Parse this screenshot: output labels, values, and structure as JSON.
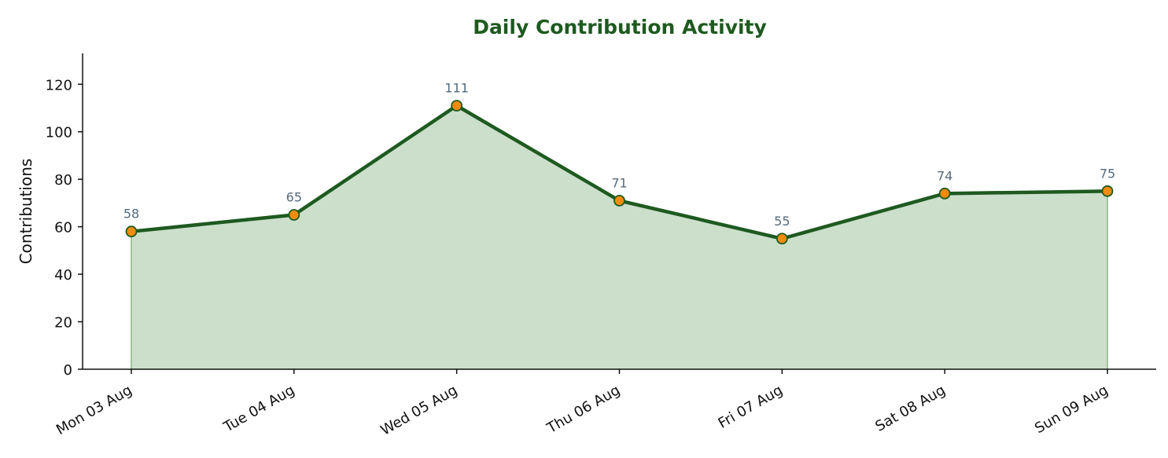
{
  "chart_data": {
    "type": "area",
    "title": "Daily Contribution Activity",
    "xlabel": "",
    "ylabel": "Contributions",
    "categories": [
      "Mon 03 Aug",
      "Tue 04 Aug",
      "Wed 05 Aug",
      "Thu 06 Aug",
      "Fri 07 Aug",
      "Sat 08 Aug",
      "Sun 09 Aug"
    ],
    "series": [
      {
        "values": [
          58,
          65,
          111,
          71,
          55,
          74,
          75
        ]
      }
    ],
    "ylim": [
      0,
      133
    ],
    "yticks": [
      0,
      20,
      40,
      60,
      80,
      100,
      120
    ],
    "grid": false,
    "data_labels": true,
    "colors": {
      "title": "#1e5a20",
      "line": "#1e5a20",
      "fill": "#cbdfcb",
      "marker_fill": "#f28c0f",
      "marker_edge": "#1e5a20",
      "data_label": "#566a7a",
      "axis": "#111111"
    }
  }
}
